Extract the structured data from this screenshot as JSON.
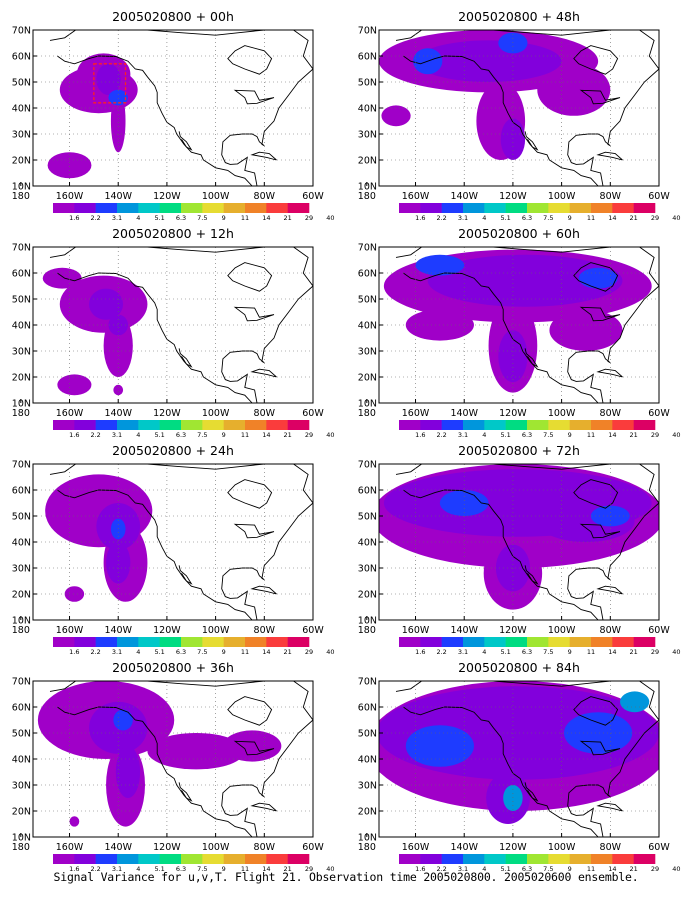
{
  "caption": "Signal Variance for u,v,T. Flight 21. Observation time 2005020800. 2005020600 ensemble.",
  "colorbar": {
    "labels": [
      "1.6",
      "2.2",
      "3.1",
      "4",
      "5.1",
      "6.3",
      "7.5",
      "9",
      "11",
      "14",
      "21",
      "29",
      "40"
    ],
    "colors": [
      "#a000c8",
      "#8200dc",
      "#1e3cff",
      "#0096dc",
      "#00c8c8",
      "#00dc82",
      "#a0e632",
      "#e6dc32",
      "#e6af2d",
      "#f08228",
      "#fa3c3c",
      "#dc0064"
    ]
  },
  "chart_data": [
    {
      "type": "heatmap",
      "title": "2005020800 + 00h",
      "xticks": [
        "180",
        "160W",
        "140W",
        "120W",
        "100W",
        "80W",
        "60W"
      ],
      "yticks": [
        "10N",
        "20N",
        "30N",
        "40N",
        "50N",
        "60N",
        "70N"
      ],
      "xlim": [
        -175,
        -60
      ],
      "ylim": [
        10,
        70
      ],
      "blobs": [
        {
          "lon": -148,
          "lat": 47,
          "rx": 16,
          "ry": 9,
          "level": 1
        },
        {
          "lon": -146,
          "lat": 53,
          "rx": 11,
          "ry": 8,
          "level": 1
        },
        {
          "lon": -140,
          "lat": 35,
          "rx": 3,
          "ry": 12,
          "level": 1
        },
        {
          "lon": -160,
          "lat": 18,
          "rx": 9,
          "ry": 5,
          "level": 1
        },
        {
          "lon": -144,
          "lat": 51,
          "rx": 5,
          "ry": 6,
          "level": 2
        },
        {
          "lon": -140,
          "lat": 44,
          "rx": 4,
          "ry": 3,
          "level": 3
        }
      ],
      "box": {
        "lon": [
          -150,
          -137
        ],
        "lat": [
          42,
          57
        ]
      }
    },
    {
      "type": "heatmap",
      "title": "2005020800 + 12h",
      "xticks": [
        "180",
        "160W",
        "140W",
        "120W",
        "100W",
        "80W",
        "60W"
      ],
      "yticks": [
        "10N",
        "20N",
        "30N",
        "40N",
        "50N",
        "60N",
        "70N"
      ],
      "xlim": [
        -175,
        -60
      ],
      "ylim": [
        10,
        70
      ],
      "blobs": [
        {
          "lon": -146,
          "lat": 48,
          "rx": 18,
          "ry": 11,
          "level": 1
        },
        {
          "lon": -140,
          "lat": 32,
          "rx": 6,
          "ry": 12,
          "level": 1
        },
        {
          "lon": -163,
          "lat": 58,
          "rx": 8,
          "ry": 4,
          "level": 1
        },
        {
          "lon": -158,
          "lat": 17,
          "rx": 7,
          "ry": 4,
          "level": 1
        },
        {
          "lon": -140,
          "lat": 15,
          "rx": 2,
          "ry": 2,
          "level": 1
        },
        {
          "lon": -145,
          "lat": 48,
          "rx": 7,
          "ry": 6,
          "level": 2
        },
        {
          "lon": -140,
          "lat": 40,
          "rx": 4,
          "ry": 4,
          "level": 2
        }
      ]
    },
    {
      "type": "heatmap",
      "title": "2005020800 + 24h",
      "xticks": [
        "180",
        "160W",
        "140W",
        "120W",
        "100W",
        "80W",
        "60W"
      ],
      "yticks": [
        "10N",
        "20N",
        "30N",
        "40N",
        "50N",
        "60N",
        "70N"
      ],
      "xlim": [
        -175,
        -60
      ],
      "ylim": [
        10,
        70
      ],
      "blobs": [
        {
          "lon": -148,
          "lat": 52,
          "rx": 22,
          "ry": 14,
          "level": 1
        },
        {
          "lon": -137,
          "lat": 32,
          "rx": 9,
          "ry": 15,
          "level": 1
        },
        {
          "lon": -158,
          "lat": 20,
          "rx": 4,
          "ry": 3,
          "level": 1
        },
        {
          "lon": -140,
          "lat": 46,
          "rx": 9,
          "ry": 9,
          "level": 2
        },
        {
          "lon": -140,
          "lat": 32,
          "rx": 5,
          "ry": 8,
          "level": 2
        },
        {
          "lon": -140,
          "lat": 45,
          "rx": 3,
          "ry": 4,
          "level": 3
        }
      ]
    },
    {
      "type": "heatmap",
      "title": "2005020800 + 36h",
      "xticks": [
        "180",
        "160W",
        "140W",
        "120W",
        "100W",
        "80W",
        "60W"
      ],
      "yticks": [
        "10N",
        "20N",
        "30N",
        "40N",
        "50N",
        "60N",
        "70N"
      ],
      "xlim": [
        -175,
        -60
      ],
      "ylim": [
        10,
        70
      ],
      "blobs": [
        {
          "lon": -145,
          "lat": 55,
          "rx": 28,
          "ry": 15,
          "level": 1
        },
        {
          "lon": -108,
          "lat": 43,
          "rx": 20,
          "ry": 7,
          "level": 1
        },
        {
          "lon": -85,
          "lat": 45,
          "rx": 12,
          "ry": 6,
          "level": 1
        },
        {
          "lon": -137,
          "lat": 30,
          "rx": 8,
          "ry": 16,
          "level": 1
        },
        {
          "lon": -158,
          "lat": 16,
          "rx": 2,
          "ry": 2,
          "level": 1
        },
        {
          "lon": -140,
          "lat": 52,
          "rx": 12,
          "ry": 10,
          "level": 2
        },
        {
          "lon": -136,
          "lat": 35,
          "rx": 5,
          "ry": 10,
          "level": 2
        },
        {
          "lon": -138,
          "lat": 55,
          "rx": 4,
          "ry": 4,
          "level": 3
        }
      ]
    },
    {
      "type": "heatmap",
      "title": "2005020800 + 48h",
      "xticks": [
        "180",
        "160W",
        "140W",
        "120W",
        "100W",
        "80W",
        "60W"
      ],
      "yticks": [
        "10N",
        "20N",
        "30N",
        "40N",
        "50N",
        "60N",
        "70N"
      ],
      "xlim": [
        -175,
        -60
      ],
      "ylim": [
        10,
        70
      ],
      "blobs": [
        {
          "lon": -130,
          "lat": 58,
          "rx": 45,
          "ry": 12,
          "level": 1
        },
        {
          "lon": -125,
          "lat": 35,
          "rx": 10,
          "ry": 15,
          "level": 1
        },
        {
          "lon": -95,
          "lat": 47,
          "rx": 15,
          "ry": 10,
          "level": 1
        },
        {
          "lon": -168,
          "lat": 37,
          "rx": 6,
          "ry": 4,
          "level": 1
        },
        {
          "lon": -130,
          "lat": 58,
          "rx": 30,
          "ry": 8,
          "level": 2
        },
        {
          "lon": -120,
          "lat": 28,
          "rx": 5,
          "ry": 8,
          "level": 2
        },
        {
          "lon": -155,
          "lat": 58,
          "rx": 6,
          "ry": 5,
          "level": 3
        },
        {
          "lon": -120,
          "lat": 65,
          "rx": 6,
          "ry": 4,
          "level": 3
        }
      ]
    },
    {
      "type": "heatmap",
      "title": "2005020800 + 60h",
      "xticks": [
        "180",
        "160W",
        "140W",
        "120W",
        "100W",
        "80W",
        "60W"
      ],
      "yticks": [
        "10N",
        "20N",
        "30N",
        "40N",
        "50N",
        "60N",
        "70N"
      ],
      "xlim": [
        -175,
        -60
      ],
      "ylim": [
        10,
        70
      ],
      "blobs": [
        {
          "lon": -118,
          "lat": 55,
          "rx": 55,
          "ry": 14,
          "level": 1
        },
        {
          "lon": -120,
          "lat": 32,
          "rx": 10,
          "ry": 18,
          "level": 1
        },
        {
          "lon": -150,
          "lat": 40,
          "rx": 14,
          "ry": 6,
          "level": 1
        },
        {
          "lon": -90,
          "lat": 38,
          "rx": 15,
          "ry": 8,
          "level": 1
        },
        {
          "lon": -115,
          "lat": 57,
          "rx": 40,
          "ry": 10,
          "level": 2
        },
        {
          "lon": -120,
          "lat": 28,
          "rx": 6,
          "ry": 10,
          "level": 2
        },
        {
          "lon": -150,
          "lat": 63,
          "rx": 10,
          "ry": 4,
          "level": 3
        },
        {
          "lon": -85,
          "lat": 58,
          "rx": 8,
          "ry": 4,
          "level": 3
        }
      ]
    },
    {
      "type": "heatmap",
      "title": "2005020800 + 72h",
      "xticks": [
        "180",
        "160W",
        "140W",
        "120W",
        "100W",
        "80W",
        "60W"
      ],
      "yticks": [
        "10N",
        "20N",
        "30N",
        "40N",
        "50N",
        "60N",
        "70N"
      ],
      "xlim": [
        -175,
        -60
      ],
      "ylim": [
        10,
        70
      ],
      "blobs": [
        {
          "lon": -118,
          "lat": 50,
          "rx": 60,
          "ry": 20,
          "level": 1
        },
        {
          "lon": -120,
          "lat": 28,
          "rx": 12,
          "ry": 14,
          "level": 1
        },
        {
          "lon": -118,
          "lat": 55,
          "rx": 55,
          "ry": 13,
          "level": 2
        },
        {
          "lon": -120,
          "lat": 30,
          "rx": 7,
          "ry": 9,
          "level": 2
        },
        {
          "lon": -90,
          "lat": 48,
          "rx": 20,
          "ry": 8,
          "level": 2
        },
        {
          "lon": -140,
          "lat": 55,
          "rx": 10,
          "ry": 5,
          "level": 3
        },
        {
          "lon": -80,
          "lat": 50,
          "rx": 8,
          "ry": 4,
          "level": 3
        }
      ]
    },
    {
      "type": "heatmap",
      "title": "2005020800 + 84h",
      "xticks": [
        "180",
        "160W",
        "140W",
        "120W",
        "100W",
        "80W",
        "60W"
      ],
      "yticks": [
        "10N",
        "20N",
        "30N",
        "40N",
        "50N",
        "60N",
        "70N"
      ],
      "xlim": [
        -175,
        -60
      ],
      "ylim": [
        10,
        70
      ],
      "blobs": [
        {
          "lon": -118,
          "lat": 45,
          "rx": 62,
          "ry": 25,
          "level": 1
        },
        {
          "lon": -118,
          "lat": 50,
          "rx": 58,
          "ry": 18,
          "level": 2
        },
        {
          "lon": -122,
          "lat": 25,
          "rx": 9,
          "ry": 10,
          "level": 2
        },
        {
          "lon": -150,
          "lat": 45,
          "rx": 14,
          "ry": 8,
          "level": 3
        },
        {
          "lon": -85,
          "lat": 50,
          "rx": 14,
          "ry": 8,
          "level": 3
        },
        {
          "lon": -120,
          "lat": 25,
          "rx": 4,
          "ry": 5,
          "level": 4
        },
        {
          "lon": -70,
          "lat": 62,
          "rx": 6,
          "ry": 4,
          "level": 4
        }
      ]
    }
  ]
}
